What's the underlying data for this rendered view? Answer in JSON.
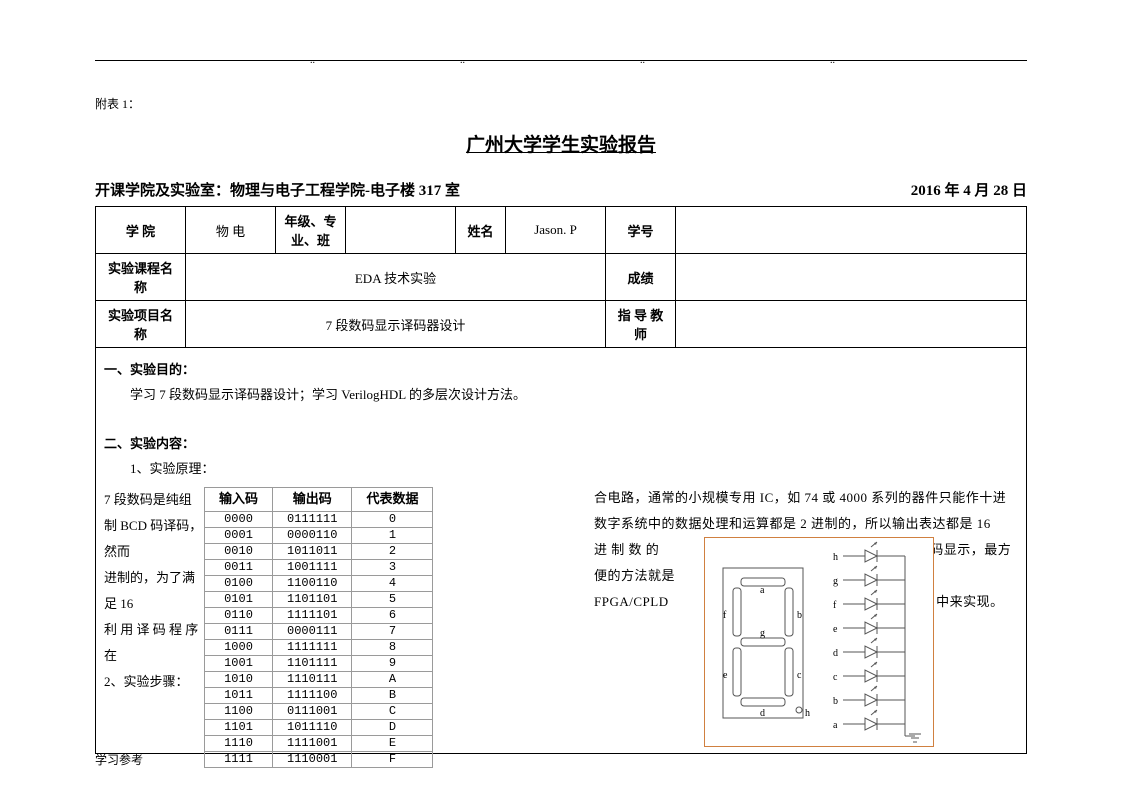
{
  "attach_label": "附表 1：",
  "title": "广州大学学生实验报告",
  "subtitle_left": "开课学院及实验室：物理与电子工程学院-电子楼 317 室",
  "subtitle_right": "2016  年 4 月 28 日",
  "info": {
    "college_lbl": "学 院",
    "college_val": "物 电",
    "grade_lbl": "年级、专 业、班",
    "grade_val": "",
    "name_lbl": "姓名",
    "name_val": "Jason. P",
    "id_lbl": "学号",
    "id_val": "",
    "course_lbl": "实验课程名称",
    "course_val": "EDA 技术实验",
    "score_lbl": "成绩",
    "score_val": "",
    "project_lbl": "实验项目名称",
    "project_val": "7 段数码显示译码器设计",
    "teacher_lbl": "指 导 教 师",
    "teacher_val": ""
  },
  "sec1_title": "一、实验目的：",
  "sec1_body": "学习 7 段数码显示译码器设计；学习 VerilogHDL 的多层次设计方法。",
  "sec2_title": "二、实验内容：",
  "sec2_1": "1、实验原理：",
  "left_text_lines": [
    "  7 段数码是纯组",
    "制 BCD 码译码，然而",
    "进制的，为了满足 16",
    "利 用 译 码 程 序 在",
    "   2、实验步骤："
  ],
  "right_text_1": "合电路，通常的小规模专用 IC，如 74 或 4000 系列的器件只能作十进",
  "right_text_2": "数字系统中的数据处理和运算都是 2 进制的，所以输出表达都是 16",
  "right_text_3a": "进 制 数 的",
  "right_text_3b": "译码显示，最方便的方法就是",
  "right_text_4a": "FPGA/CPLD",
  "right_text_4b": "中来实现。",
  "truth_headers": [
    "输入码",
    "输出码",
    "代表数据"
  ],
  "truth_rows": [
    [
      "0000",
      "0111111",
      "0"
    ],
    [
      "0001",
      "0000110",
      "1"
    ],
    [
      "0010",
      "1011011",
      "2"
    ],
    [
      "0011",
      "1001111",
      "3"
    ],
    [
      "0100",
      "1100110",
      "4"
    ],
    [
      "0101",
      "1101101",
      "5"
    ],
    [
      "0110",
      "1111101",
      "6"
    ],
    [
      "0111",
      "0000111",
      "7"
    ],
    [
      "1000",
      "1111111",
      "8"
    ],
    [
      "1001",
      "1101111",
      "9"
    ],
    [
      "1010",
      "1110111",
      "A"
    ],
    [
      "1011",
      "1111100",
      "B"
    ],
    [
      "1100",
      "0111001",
      "C"
    ],
    [
      "1101",
      "1011110",
      "D"
    ],
    [
      "1110",
      "1111001",
      "E"
    ],
    [
      "1111",
      "1110001",
      "F"
    ]
  ],
  "seg_labels": {
    "a": "a",
    "b": "b",
    "c": "c",
    "d": "d",
    "e": "e",
    "f": "f",
    "g": "g",
    "h": "h",
    "oh": "h"
  },
  "footer": "学习参考"
}
